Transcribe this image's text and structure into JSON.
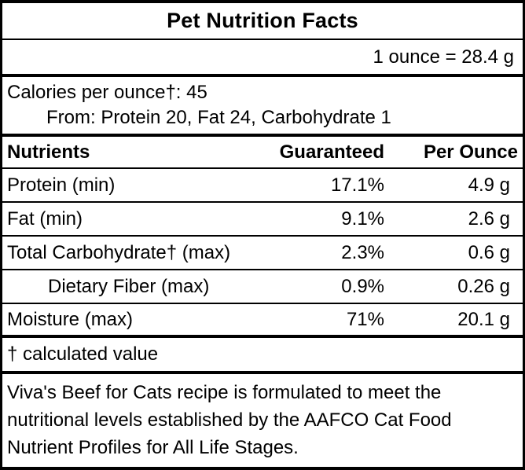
{
  "label": {
    "title": "Pet Nutrition Facts",
    "serving_equivalence": "1 ounce = 28.4 g",
    "calories_line": "Calories per ounce†: 45",
    "calories_from_line": "From: Protein 20, Fat 24, Carbohydrate 1",
    "footnote": "† calculated value",
    "statement": "Viva's Beef for Cats recipe is formulated to meet the nutritional levels established by the AAFCO Cat Food Nutrient Profiles for All Life Stages."
  },
  "table": {
    "headers": [
      "Nutrients",
      "Guaranteed",
      "Per Ounce"
    ],
    "rows": [
      {
        "nutrient": "Protein (min)",
        "guaranteed": "17.1%",
        "per_ounce": "4.9 g",
        "indent": false
      },
      {
        "nutrient": "Fat (min)",
        "guaranteed": "9.1%",
        "per_ounce": "2.6 g",
        "indent": false
      },
      {
        "nutrient": "Total Carbohydrate† (max)",
        "guaranteed": "2.3%",
        "per_ounce": "0.6 g",
        "indent": false
      },
      {
        "nutrient": "Dietary Fiber (max)",
        "guaranteed": "0.9%",
        "per_ounce": "0.26 g",
        "indent": true
      },
      {
        "nutrient": "Moisture (max)",
        "guaranteed": "71%",
        "per_ounce": "20.1 g",
        "indent": false
      }
    ]
  },
  "colors": {
    "border": "#000000",
    "background": "#ffffff",
    "text": "#000000"
  }
}
